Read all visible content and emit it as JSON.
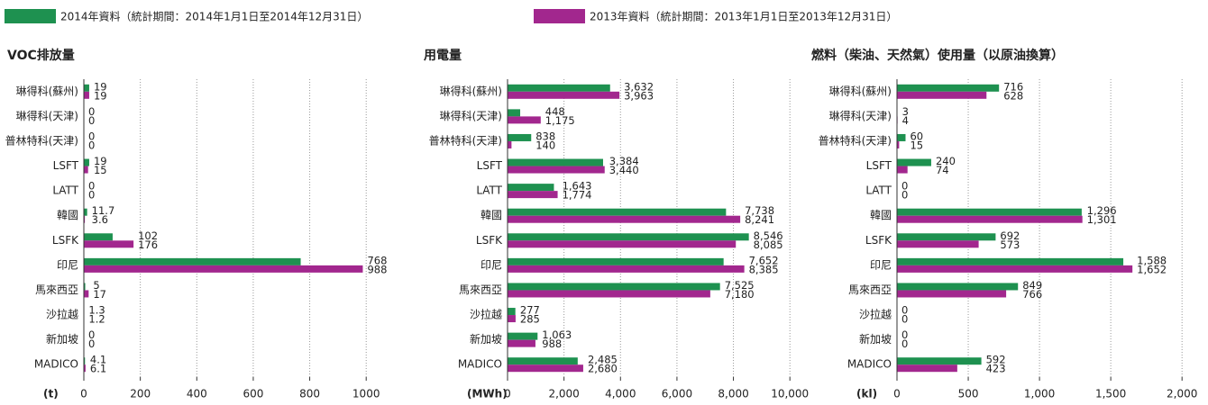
{
  "legend": [
    {
      "name": "2014年資料（統計期間：2014年1月1日至2014年12月31日）",
      "color": "#1e9150"
    },
    {
      "name": "2013年資料（統計期間：2013年1月1日至2013年12月31日）",
      "color": "#a2278e"
    }
  ],
  "chart_data": [
    {
      "type": "bar",
      "orientation": "horizontal",
      "title": "VOC排放量",
      "x_label": "(t)",
      "categories": [
        "琳得科(蘇州)",
        "琳得科(天津)",
        "普林特科(天津)",
        "LSFT",
        "LATT",
        "韓國",
        "LSFK",
        "印尼",
        "馬來西亞",
        "沙拉越",
        "新加坡",
        "MADICO"
      ],
      "series": [
        {
          "color": "#1e9150",
          "values": [
            19,
            0,
            0,
            19,
            0,
            11.7,
            102,
            768,
            5,
            1.3,
            0,
            4.1
          ]
        },
        {
          "color": "#a2278e",
          "values": [
            19,
            0,
            0,
            15,
            0,
            3.6,
            176,
            988,
            17,
            1.2,
            0,
            6.1
          ]
        }
      ],
      "xlim": [
        0,
        1060
      ],
      "xticks": [
        0,
        200,
        400,
        600,
        800,
        1000
      ],
      "grid": true
    },
    {
      "type": "bar",
      "orientation": "horizontal",
      "title": "用電量",
      "x_label": "(MWh)",
      "categories": [
        "琳得科(蘇州)",
        "琳得科(天津)",
        "普林特科(天津)",
        "LSFT",
        "LATT",
        "韓國",
        "LSFK",
        "印尼",
        "馬來西亞",
        "沙拉越",
        "新加坡",
        "MADICO"
      ],
      "series": [
        {
          "color": "#1e9150",
          "values": [
            3632,
            448,
            838,
            3384,
            1643,
            7738,
            8546,
            7652,
            7525,
            277,
            1063,
            2485
          ],
          "value_labels": [
            "3,632",
            "448",
            "838",
            "3,384",
            "1,643",
            "7,738",
            "8,546",
            "7,652",
            "7,525",
            "277",
            "1,063",
            "2,485"
          ]
        },
        {
          "color": "#a2278e",
          "values": [
            3963,
            1175,
            140,
            3440,
            1774,
            8241,
            8085,
            8385,
            7180,
            285,
            988,
            2680
          ],
          "value_labels": [
            "3,963",
            "1,175",
            "140",
            "3,440",
            "1,774",
            "8,241",
            "8,085",
            "8,385",
            "7,180",
            "285",
            "988",
            "2,680"
          ]
        }
      ],
      "xlim": [
        0,
        10600
      ],
      "xticks": [
        0,
        {
          "value": 2000,
          "label": "2,000"
        },
        {
          "value": 4000,
          "label": "4,000"
        },
        {
          "value": 6000,
          "label": "6,000"
        },
        {
          "value": 8000,
          "label": "8,000"
        },
        {
          "value": 10000,
          "label": "10,000"
        }
      ],
      "grid": true
    },
    {
      "type": "bar",
      "orientation": "horizontal",
      "title": "燃料（柴油、天然氣）使用量（以原油換算）",
      "x_label": "(kl)",
      "categories": [
        "琳得科(蘇州)",
        "琳得科(天津)",
        "普林特科(天津)",
        "LSFT",
        "LATT",
        "韓國",
        "LSFK",
        "印尼",
        "馬來西亞",
        "沙拉越",
        "新加坡",
        "MADICO"
      ],
      "series": [
        {
          "color": "#1e9150",
          "values": [
            716,
            3,
            60,
            240,
            0,
            1296,
            692,
            1588,
            849,
            0,
            0,
            592
          ],
          "value_labels": [
            "716",
            "3",
            "60",
            "240",
            "0",
            "1,296",
            "692",
            "1,588",
            "849",
            "0",
            "0",
            "592"
          ]
        },
        {
          "color": "#a2278e",
          "values": [
            628,
            4,
            15,
            74,
            0,
            1301,
            573,
            1652,
            766,
            0,
            0,
            423
          ],
          "value_labels": [
            "628",
            "4",
            "15",
            "74",
            "0",
            "1,301",
            "573",
            "1,652",
            "766",
            "0",
            "0",
            "423"
          ]
        }
      ],
      "xlim": [
        0,
        2100
      ],
      "xticks": [
        0,
        500,
        {
          "value": 1000,
          "label": "1,000"
        },
        {
          "value": 1500,
          "label": "1,500"
        },
        {
          "value": 2000,
          "label": "2,000"
        }
      ],
      "grid": true
    }
  ]
}
